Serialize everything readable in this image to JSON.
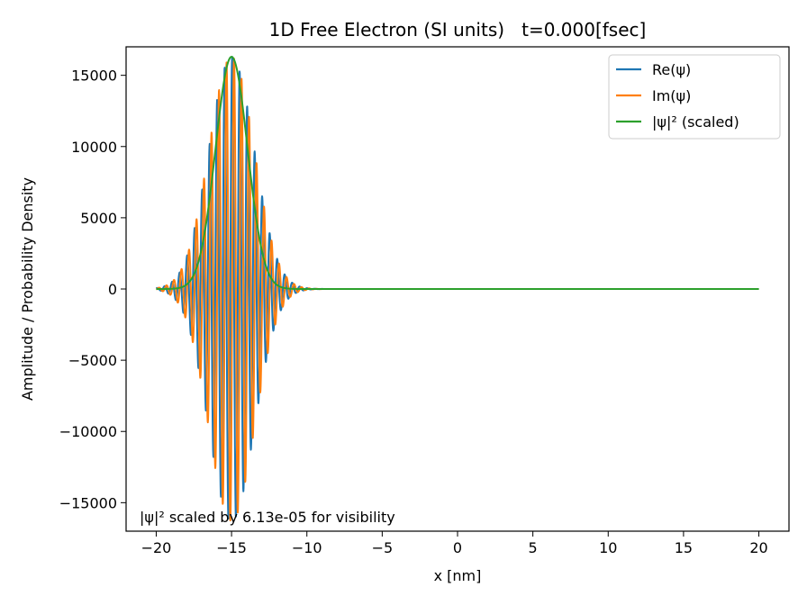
{
  "chart_data": {
    "type": "line",
    "title": "1D Free Electron (SI units)   t=0.000[fsec]",
    "xlabel": "x [nm]",
    "ylabel": "Amplitude / Probability Density",
    "xlim": [
      -22,
      22
    ],
    "ylim": [
      -17000,
      17000
    ],
    "xticks": [
      -20,
      -15,
      -10,
      -5,
      0,
      5,
      10,
      15,
      20
    ],
    "xtick_labels": [
      "−20",
      "−15",
      "−10",
      "−5",
      "0",
      "5",
      "10",
      "15",
      "20"
    ],
    "yticks": [
      -15000,
      -10000,
      -5000,
      0,
      5000,
      10000,
      15000
    ],
    "ytick_labels": [
      "−15000",
      "−10000",
      "−5000",
      "0",
      "5000",
      "10000",
      "15000"
    ],
    "grid": false,
    "legend_position": "top-right",
    "annotation": "|ψ|² scaled by 6.13e-05 for visibility",
    "wavepacket": {
      "x_range": [
        -20,
        20
      ],
      "center": -15,
      "sigma": 1.5,
      "amplitude": 16300,
      "wavenumber": 12.6
    },
    "series": [
      {
        "name": "Re(ψ)",
        "color": "#1f77b4",
        "kind": "real"
      },
      {
        "name": "Im(ψ)",
        "color": "#ff7f0e",
        "kind": "imag"
      },
      {
        "name": "|ψ|² (scaled)",
        "color": "#2ca02c",
        "kind": "density"
      }
    ]
  }
}
